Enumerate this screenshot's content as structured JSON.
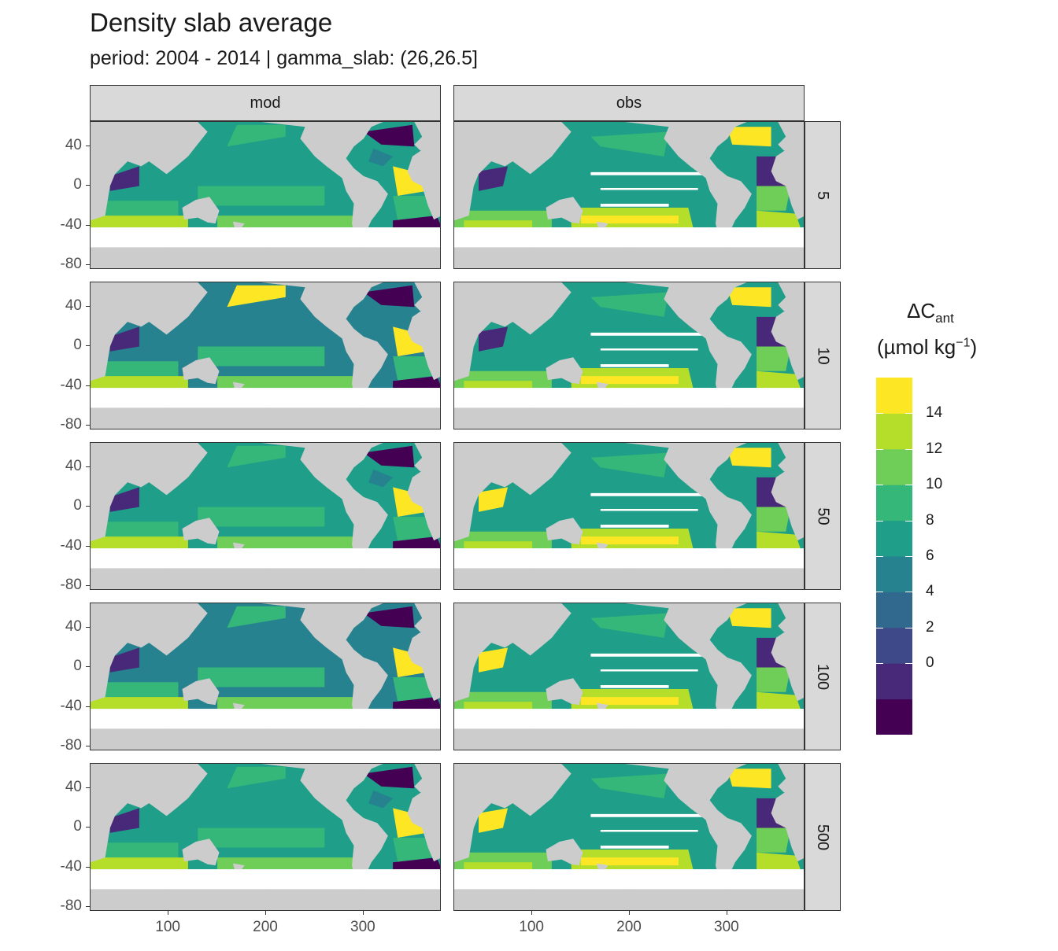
{
  "chart_data": {
    "type": "heatmap",
    "title": "Density slab average",
    "subtitle": "period: 2004 - 2014 | gamma_slab: (26,26.5]",
    "columns": [
      "mod",
      "obs"
    ],
    "rows": [
      "5",
      "10",
      "50",
      "100",
      "500"
    ],
    "x_ticks": [
      "100",
      "200",
      "300"
    ],
    "y_ticks": [
      "40",
      "0",
      "-40",
      "-80"
    ],
    "xlim": [
      20,
      380
    ],
    "ylim": [
      -85,
      65
    ],
    "legend": {
      "title": "ΔC",
      "title_sub": "ant",
      "unit": "(µmol kg",
      "unit_sup": "−1",
      "unit_close": ")",
      "labels": [
        "14",
        "12",
        "10",
        "8",
        "6",
        "4",
        "2",
        "0"
      ],
      "colors": [
        "#440154",
        "#482878",
        "#3e4989",
        "#31688e",
        "#26828e",
        "#1f9e89",
        "#35b779",
        "#6ece58",
        "#b5de2b",
        "#fde725"
      ],
      "placement": "right"
    },
    "colors": {
      "land": "#cccccc",
      "strip_bg": "#d9d9d9",
      "grid": "#ebebeb"
    }
  }
}
